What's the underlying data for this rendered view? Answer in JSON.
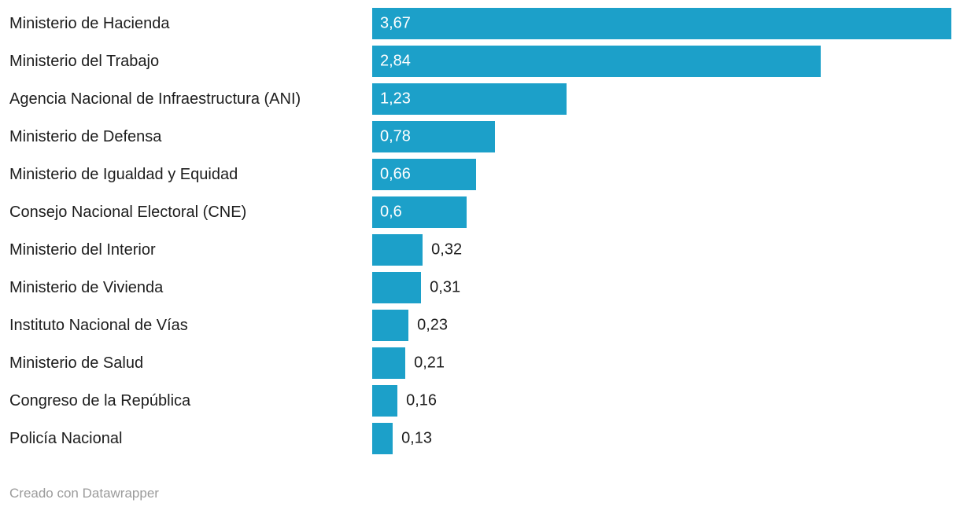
{
  "footer": {
    "credit": "Creado con Datawrapper"
  },
  "colors": {
    "bar": "#1CA0C9",
    "label_text": "#1d1d1d",
    "value_inside": "#ffffff",
    "value_outside": "#1d1d1d",
    "footer_text": "#9b9b9b",
    "background": "#ffffff"
  },
  "chart_data": {
    "type": "bar",
    "orientation": "horizontal",
    "title": "",
    "xlabel": "",
    "ylabel": "",
    "xlim": [
      0,
      3.67
    ],
    "grid": false,
    "legend": "none",
    "decimal_separator": ",",
    "categories": [
      "Ministerio de Hacienda",
      "Ministerio del Trabajo",
      "Agencia Nacional de Infraestructura (ANI)",
      "Ministerio de Defensa",
      "Ministerio de Igualdad y Equidad",
      "Consejo Nacional Electoral (CNE)",
      "Ministerio del Interior",
      "Ministerio de Vivienda",
      "Instituto Nacional de Vías",
      "Ministerio de Salud",
      "Congreso de la República",
      "Policía Nacional"
    ],
    "values": [
      3.67,
      2.84,
      1.23,
      0.78,
      0.66,
      0.6,
      0.32,
      0.31,
      0.23,
      0.21,
      0.16,
      0.13
    ],
    "value_labels": [
      "3,67",
      "2,84",
      "1,23",
      "0,78",
      "0,66",
      "0,6",
      "0,32",
      "0,31",
      "0,23",
      "0,21",
      "0,16",
      "0,13"
    ]
  }
}
